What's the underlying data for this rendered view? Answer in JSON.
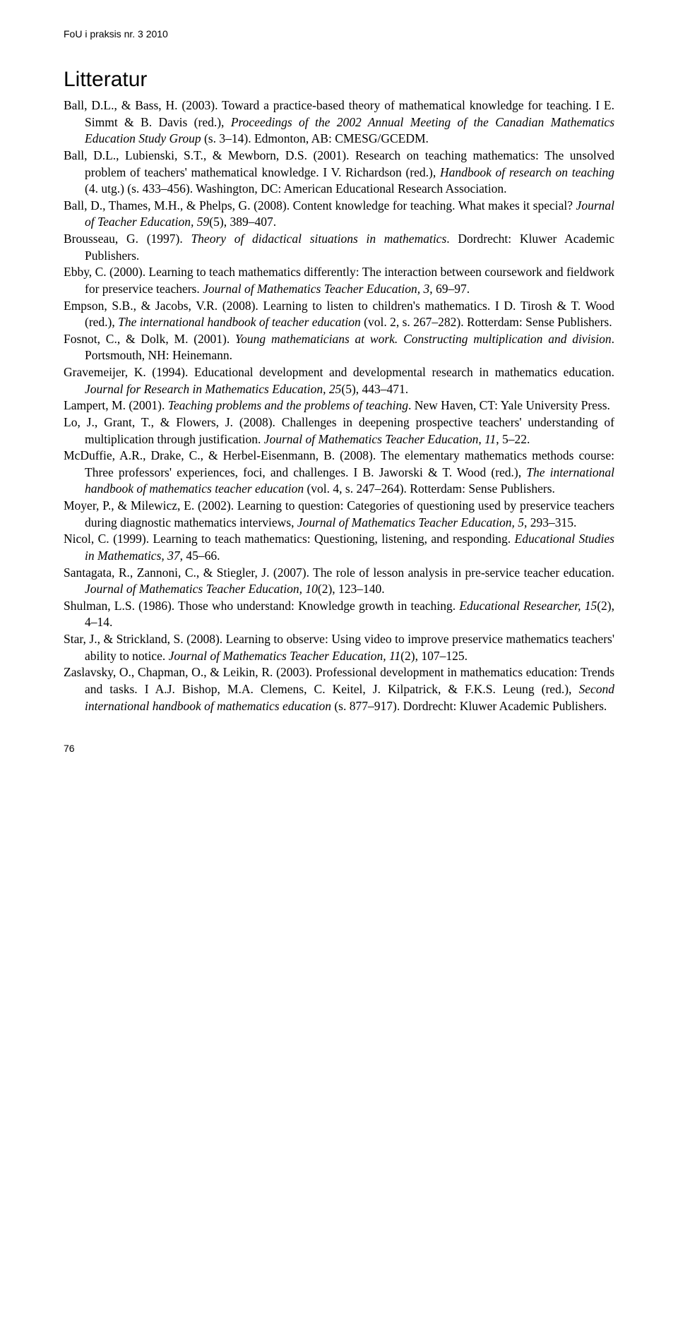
{
  "header": "FoU i praksis nr. 3 2010",
  "sectionTitle": "Litteratur",
  "pageNumber": "76",
  "refs": [
    {
      "segs": [
        {
          "t": "Ball, D.L., & Bass, H. (2003). Toward a practice-based theory of mathematical knowledge for teaching. I E. Simmt & B. Davis (red.), ",
          "i": false
        },
        {
          "t": "Proceedings of the 2002 Annual Meeting of the Canadian Mathematics Education Study Group ",
          "i": true
        },
        {
          "t": "(s. 3–14). Edmonton, AB: CMESG/GCEDM.",
          "i": false
        }
      ]
    },
    {
      "segs": [
        {
          "t": "Ball, D.L., Lubienski, S.T., & Mewborn, D.S. (2001). Research on teaching mathematics: The unsolved problem of teachers' mathematical knowledge. I V. Richardson (red.), ",
          "i": false
        },
        {
          "t": "Handbook of research on teaching ",
          "i": true
        },
        {
          "t": "(4. utg.) (s. 433–456). Washington, DC: American Educational Research Association.",
          "i": false
        }
      ]
    },
    {
      "segs": [
        {
          "t": "Ball, D., Thames, M.H., & Phelps, G. (2008). Content knowledge for teaching. What makes it special? ",
          "i": false
        },
        {
          "t": "Journal of Teacher Education, 59",
          "i": true
        },
        {
          "t": "(5), 389–407.",
          "i": false
        }
      ]
    },
    {
      "segs": [
        {
          "t": "Brousseau, G. (1997). ",
          "i": false
        },
        {
          "t": "Theory of didactical situations in mathematics",
          "i": true
        },
        {
          "t": ". Dordrecht: Kluwer Academic Publishers.",
          "i": false
        }
      ]
    },
    {
      "segs": [
        {
          "t": "Ebby, C. (2000). Learning to teach mathematics differently: The interaction between coursework and fieldwork for preservice teachers. ",
          "i": false
        },
        {
          "t": "Journal of Mathematics Teacher Education, 3",
          "i": true
        },
        {
          "t": ", 69–97.",
          "i": false
        }
      ]
    },
    {
      "segs": [
        {
          "t": "Empson, S.B., & Jacobs, V.R. (2008). Learning to listen to children's mathematics. I D. Tirosh & T. Wood (red.), ",
          "i": false
        },
        {
          "t": "The international handbook of teacher education ",
          "i": true
        },
        {
          "t": "(vol. 2, s. 267–282). Rotterdam: Sense Publishers.",
          "i": false
        }
      ]
    },
    {
      "segs": [
        {
          "t": "Fosnot, C., & Dolk, M. (2001). ",
          "i": false
        },
        {
          "t": "Young mathematicians at work. Constructing multiplication and division",
          "i": true
        },
        {
          "t": ". Portsmouth, NH: Heinemann.",
          "i": false
        }
      ]
    },
    {
      "segs": [
        {
          "t": "Gravemeijer, K. (1994). Educational development and developmental research in mathematics education. ",
          "i": false
        },
        {
          "t": "Journal for Research in Mathematics Education, 25",
          "i": true
        },
        {
          "t": "(5), 443–471.",
          "i": false
        }
      ]
    },
    {
      "segs": [
        {
          "t": "Lampert, M. (2001). ",
          "i": false
        },
        {
          "t": "Teaching problems and the problems of teaching",
          "i": true
        },
        {
          "t": ". New Haven, CT: Yale University Press.",
          "i": false
        }
      ]
    },
    {
      "segs": [
        {
          "t": "Lo, J., Grant, T., & Flowers, J. (2008). Challenges in deepening prospective teachers' understanding of multiplication through justification. ",
          "i": false
        },
        {
          "t": "Journal of Mathematics Teacher Education",
          "i": true
        },
        {
          "t": ", ",
          "i": false
        },
        {
          "t": "11",
          "i": true
        },
        {
          "t": ", 5–22.",
          "i": false
        }
      ]
    },
    {
      "segs": [
        {
          "t": "McDuffie, A.R., Drake, C., & Herbel-Eisenmann, B. (2008). The elementary mathematics methods course: Three professors' experiences, foci, and challenges. I B. Jaworski & T. Wood (red.), ",
          "i": false
        },
        {
          "t": "The international handbook of mathematics teacher education ",
          "i": true
        },
        {
          "t": "(vol. 4, s. 247–264). Rotterdam: Sense Publishers.",
          "i": false
        }
      ]
    },
    {
      "segs": [
        {
          "t": "Moyer, P., & Milewicz, E. (2002). Learning to question: Categories of questioning used by preservice teachers during diagnostic mathematics interviews, ",
          "i": false
        },
        {
          "t": "Journal of Mathematics Teacher Education, 5",
          "i": true
        },
        {
          "t": ", 293–315.",
          "i": false
        }
      ]
    },
    {
      "segs": [
        {
          "t": "Nicol, C. (1999). Learning to teach mathematics: Questioning, listening, and responding. ",
          "i": false
        },
        {
          "t": "Educational Studies in Mathematics, 37",
          "i": true
        },
        {
          "t": ", 45–66.",
          "i": false
        }
      ]
    },
    {
      "segs": [
        {
          "t": "Santagata, R., Zannoni, C., & Stiegler, J. (2007). The role of lesson analysis in pre-service teacher education. ",
          "i": false
        },
        {
          "t": "Journal of Mathematics Teacher Education, 10",
          "i": true
        },
        {
          "t": "(2), 123–140.",
          "i": false
        }
      ]
    },
    {
      "segs": [
        {
          "t": "Shulman, L.S. (1986). Those who understand: Knowledge growth in teaching. ",
          "i": false
        },
        {
          "t": "Educational Researcher, 15",
          "i": true
        },
        {
          "t": "(2), 4–14.",
          "i": false
        }
      ]
    },
    {
      "segs": [
        {
          "t": "Star, J., & Strickland, S. (2008). Learning to observe: Using video to improve preservice mathematics teachers' ability to notice. ",
          "i": false
        },
        {
          "t": "Journal of Mathematics Teacher Education, 11",
          "i": true
        },
        {
          "t": "(2), 107–125.",
          "i": false
        }
      ]
    },
    {
      "segs": [
        {
          "t": "Zaslavsky, O., Chapman, O., & Leikin, R. (2003). Professional development in mathematics education: Trends and tasks. I A.J. Bishop, M.A. Clemens, C. Keitel, J. Kilpatrick, & F.K.S. Leung (red.), ",
          "i": false
        },
        {
          "t": "Second international handbook of mathematics education ",
          "i": true
        },
        {
          "t": "(s. 877–917). Dordrecht: Kluwer Academic Publishers.",
          "i": false
        }
      ]
    }
  ]
}
